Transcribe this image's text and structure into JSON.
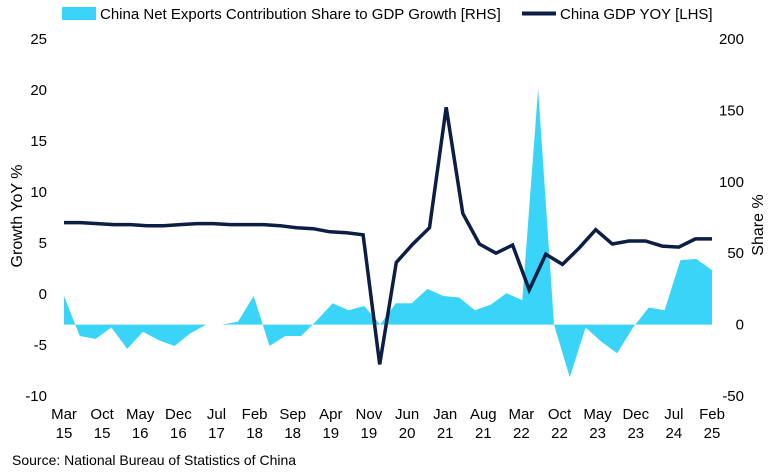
{
  "chart_data": {
    "type": "area",
    "title": "",
    "source": "Source: National Bureau of Statistics of China",
    "left_axis": {
      "label": "Growth YoY %",
      "ylim": [
        -10,
        25
      ],
      "ticks": [
        "25",
        "20",
        "15",
        "10",
        "5",
        "0",
        "-5",
        "-10"
      ],
      "tick_values": [
        25,
        20,
        15,
        10,
        5,
        0,
        -5,
        -10
      ]
    },
    "right_axis": {
      "label": "Share %",
      "ylim": [
        -50,
        200
      ],
      "ticks": [
        "200",
        "150",
        "100",
        "50",
        "0",
        "-50"
      ],
      "tick_values": [
        200,
        150,
        100,
        50,
        0,
        -50
      ]
    },
    "x_ticks": [
      {
        "top": "Mar",
        "bottom": "15"
      },
      {
        "top": "Oct",
        "bottom": "15"
      },
      {
        "top": "May",
        "bottom": "16"
      },
      {
        "top": "Dec",
        "bottom": "16"
      },
      {
        "top": "Jul",
        "bottom": "17"
      },
      {
        "top": "Feb",
        "bottom": "18"
      },
      {
        "top": "Sep",
        "bottom": "18"
      },
      {
        "top": "Apr",
        "bottom": "19"
      },
      {
        "top": "Nov",
        "bottom": "19"
      },
      {
        "top": "Jun",
        "bottom": "20"
      },
      {
        "top": "Jan",
        "bottom": "21"
      },
      {
        "top": "Aug",
        "bottom": "21"
      },
      {
        "top": "Mar",
        "bottom": "22"
      },
      {
        "top": "Oct",
        "bottom": "22"
      },
      {
        "top": "May",
        "bottom": "23"
      },
      {
        "top": "Dec",
        "bottom": "23"
      },
      {
        "top": "Jul",
        "bottom": "24"
      },
      {
        "top": "Feb",
        "bottom": "25"
      }
    ],
    "series": [
      {
        "name": "China Net Exports Contribution Share to GDP Growth [RHS]",
        "axis": "right",
        "color": "#3BD4F9",
        "style": "area",
        "values": [
          20,
          -8,
          -10,
          -2,
          -17,
          -5,
          -11,
          -15,
          -6,
          0,
          0,
          2,
          20,
          -15,
          -8,
          -8,
          3,
          15,
          10,
          13,
          0,
          15,
          15,
          25,
          20,
          19,
          10,
          14,
          22,
          17,
          165,
          0,
          -37,
          -2,
          -12,
          -20,
          -2,
          12,
          10,
          45,
          46,
          38
        ]
      },
      {
        "name": "China GDP YOY [LHS]",
        "axis": "left",
        "color": "#0D1E45",
        "style": "line",
        "values": [
          7.0,
          7.0,
          6.9,
          6.8,
          6.8,
          6.7,
          6.7,
          6.8,
          6.9,
          6.9,
          6.8,
          6.8,
          6.8,
          6.7,
          6.5,
          6.4,
          6.1,
          6.0,
          5.8,
          -6.9,
          3.1,
          4.9,
          6.5,
          18.3,
          7.9,
          4.9,
          4.0,
          4.8,
          0.4,
          3.9,
          2.9,
          4.5,
          6.3,
          4.9,
          5.2,
          5.2,
          4.7,
          4.6,
          5.4,
          5.4
        ]
      }
    ]
  }
}
